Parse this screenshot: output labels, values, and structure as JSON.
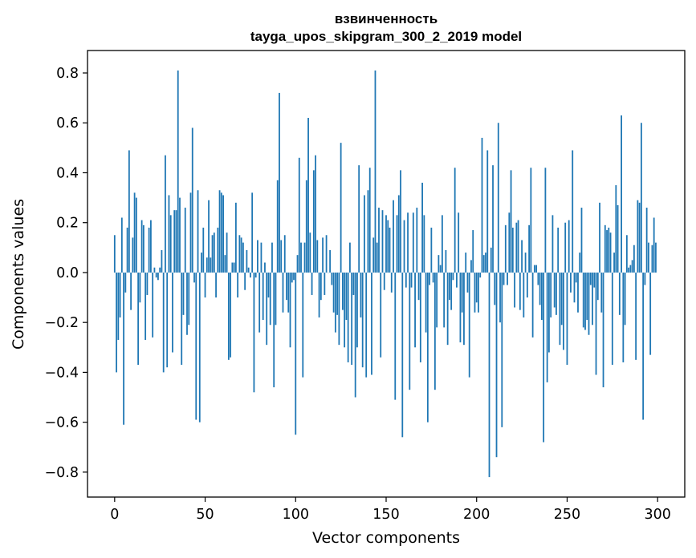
{
  "chart_data": {
    "type": "bar",
    "title_line1": "взвинченность",
    "title_line2": "tayga_upos_skipgram_300_2_2019 model",
    "xlabel": "Vector components",
    "ylabel": "Components values",
    "xlim": [
      -15,
      315
    ],
    "ylim": [
      -0.9,
      0.89
    ],
    "xticks": [
      0,
      50,
      100,
      150,
      200,
      250,
      300
    ],
    "yticks": [
      -0.8,
      -0.6,
      -0.4,
      -0.2,
      0.0,
      0.2,
      0.4,
      0.6,
      0.8
    ],
    "ytick_labels": [
      "−0.8",
      "−0.6",
      "−0.4",
      "−0.2",
      "0.0",
      "0.2",
      "0.4",
      "0.6",
      "0.8"
    ],
    "grid": false,
    "bar_color": "#1f77b4",
    "values": [
      0.15,
      -0.4,
      -0.27,
      -0.18,
      0.22,
      -0.61,
      -0.08,
      0.18,
      0.49,
      -0.15,
      0.14,
      0.32,
      0.3,
      -0.37,
      -0.12,
      0.21,
      0.19,
      -0.27,
      -0.09,
      0.18,
      0.21,
      -0.26,
      0.02,
      -0.02,
      -0.03,
      0.02,
      0.09,
      -0.4,
      0.47,
      -0.38,
      0.31,
      0.23,
      -0.32,
      0.25,
      0.25,
      0.81,
      0.3,
      -0.37,
      -0.17,
      0.26,
      -0.25,
      -0.21,
      0.32,
      0.58,
      -0.04,
      -0.59,
      0.33,
      -0.6,
      0.08,
      0.18,
      -0.1,
      0.06,
      0.29,
      0.06,
      0.15,
      0.16,
      -0.1,
      0.18,
      0.33,
      0.32,
      0.31,
      0.07,
      0.16,
      -0.35,
      -0.34,
      0.04,
      0.04,
      0.28,
      -0.1,
      0.15,
      0.14,
      0.12,
      -0.07,
      0.09,
      0.02,
      -0.02,
      0.32,
      -0.48,
      -0.02,
      0.13,
      -0.24,
      0.12,
      -0.19,
      0.04,
      -0.29,
      -0.1,
      -0.21,
      0.12,
      -0.46,
      -0.21,
      0.37,
      0.72,
      0.13,
      -0.16,
      0.15,
      -0.11,
      -0.16,
      -0.3,
      -0.04,
      -0.03,
      -0.65,
      0.07,
      0.46,
      0.12,
      -0.42,
      0.12,
      0.37,
      0.62,
      0.16,
      -0.09,
      0.41,
      0.47,
      0.13,
      -0.18,
      -0.11,
      0.14,
      -0.09,
      0.15,
      0.0,
      0.09,
      -0.05,
      -0.16,
      -0.24,
      -0.17,
      -0.29,
      0.52,
      -0.15,
      -0.3,
      -0.19,
      -0.36,
      0.12,
      -0.37,
      -0.09,
      -0.5,
      -0.3,
      0.43,
      -0.18,
      -0.38,
      0.31,
      -0.42,
      0.33,
      0.42,
      -0.41,
      0.14,
      0.81,
      0.12,
      0.26,
      -0.34,
      0.25,
      -0.07,
      0.23,
      0.21,
      0.18,
      -0.08,
      0.29,
      -0.51,
      0.23,
      0.31,
      0.41,
      -0.66,
      0.21,
      -0.06,
      0.24,
      -0.47,
      -0.06,
      0.24,
      -0.3,
      0.26,
      -0.11,
      -0.36,
      0.36,
      0.23,
      -0.24,
      -0.6,
      -0.05,
      0.18,
      -0.04,
      -0.47,
      -0.22,
      0.07,
      0.03,
      0.23,
      -0.22,
      0.09,
      -0.29,
      -0.11,
      -0.15,
      -0.03,
      0.42,
      -0.06,
      0.24,
      -0.28,
      -0.16,
      -0.29,
      0.08,
      -0.08,
      -0.42,
      0.05,
      0.17,
      -0.16,
      -0.12,
      -0.16,
      -0.02,
      0.54,
      0.07,
      0.08,
      0.49,
      -0.82,
      0.1,
      0.43,
      -0.13,
      -0.74,
      0.6,
      -0.2,
      -0.62,
      -0.05,
      0.19,
      -0.05,
      0.24,
      0.41,
      0.18,
      -0.14,
      0.2,
      0.21,
      -0.15,
      0.13,
      -0.18,
      0.08,
      -0.1,
      0.19,
      0.42,
      -0.26,
      0.03,
      0.03,
      -0.05,
      -0.13,
      -0.19,
      -0.68,
      0.42,
      -0.44,
      -0.32,
      -0.18,
      0.23,
      -0.14,
      -0.17,
      0.18,
      -0.29,
      -0.21,
      -0.31,
      0.2,
      -0.37,
      0.21,
      -0.08,
      0.49,
      -0.12,
      -0.04,
      -0.16,
      0.08,
      0.26,
      -0.22,
      -0.23,
      -0.19,
      -0.25,
      -0.05,
      -0.21,
      -0.06,
      -0.41,
      -0.11,
      0.28,
      -0.16,
      -0.46,
      0.19,
      0.17,
      0.18,
      0.16,
      -0.37,
      0.08,
      0.35,
      0.27,
      -0.17,
      0.63,
      -0.36,
      -0.21,
      0.15,
      0.02,
      0.03,
      0.05,
      0.11,
      -0.35,
      0.29,
      0.28,
      0.6,
      -0.59,
      -0.05,
      0.26,
      0.12,
      -0.33,
      0.11,
      0.22,
      0.12
    ]
  }
}
